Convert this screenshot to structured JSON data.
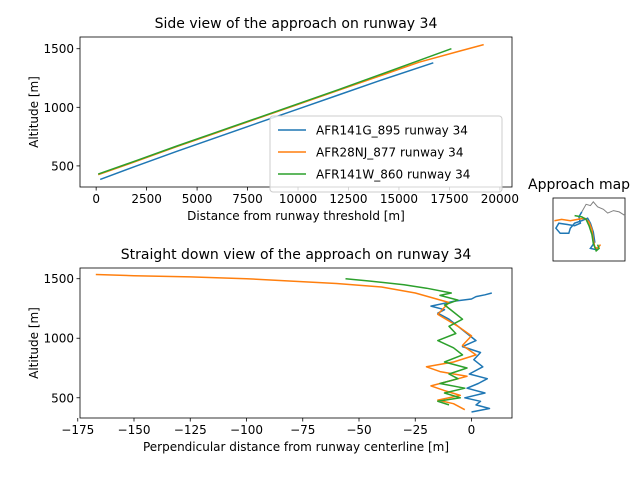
{
  "chart_data": [
    {
      "type": "line",
      "title": "Side view of the approach on runway 34",
      "xlabel": "Distance from runway threshold [m]",
      "ylabel": "Altitude [m]",
      "xlim": [
        -800,
        20600
      ],
      "ylim": [
        320,
        1600
      ],
      "xticks": [
        0,
        2500,
        5000,
        7500,
        10000,
        12500,
        15000,
        17500,
        20000
      ],
      "yticks": [
        500,
        1000,
        1500
      ],
      "grid": false,
      "legend": "bottom-right",
      "series": [
        {
          "name": "AFR141G_895 runway 34",
          "color": "#1f77b4",
          "x": [
            200,
            2000,
            4000,
            6000,
            8000,
            10000,
            12000,
            14000,
            16700
          ],
          "y": [
            385,
            500,
            625,
            745,
            865,
            985,
            1105,
            1225,
            1380
          ]
        },
        {
          "name": "AFR28NJ_877 runway 34",
          "color": "#ff7f0e",
          "x": [
            100,
            2000,
            4000,
            6000,
            8000,
            10000,
            12000,
            14000,
            16000,
            18000,
            19200
          ],
          "y": [
            425,
            540,
            665,
            785,
            905,
            1025,
            1145,
            1265,
            1385,
            1480,
            1535
          ]
        },
        {
          "name": "AFR141W_860 runway 34",
          "color": "#2ca02c",
          "x": [
            100,
            2000,
            4000,
            6000,
            8000,
            10000,
            12000,
            14000,
            16000,
            17600
          ],
          "y": [
            430,
            545,
            670,
            790,
            910,
            1030,
            1150,
            1275,
            1400,
            1500
          ]
        }
      ]
    },
    {
      "type": "line",
      "title": "Straight down view of the approach on runway 34",
      "xlabel": "Perpendicular distance from runway centerline [m]",
      "ylabel": "Altitude [m]",
      "xlim": [
        -174,
        18
      ],
      "ylim": [
        330,
        1590
      ],
      "xticks": [
        -175,
        -150,
        -125,
        -100,
        -75,
        -50,
        -25,
        0
      ],
      "yticks": [
        500,
        1000,
        1500
      ],
      "grid": false,
      "series": [
        {
          "name": "AFR141G_895 runway 34",
          "color": "#1f77b4",
          "x": [
            0,
            8,
            2,
            4,
            -3,
            6,
            -2,
            3,
            7,
            -1,
            5,
            1,
            4,
            -4,
            2,
            -2,
            -6,
            -10,
            -15,
            -12,
            -18,
            -8,
            0,
            2,
            6,
            9
          ],
          "y": [
            380,
            410,
            440,
            470,
            500,
            540,
            580,
            620,
            660,
            700,
            760,
            820,
            880,
            930,
            980,
            1040,
            1100,
            1160,
            1210,
            1240,
            1270,
            1310,
            1330,
            1350,
            1365,
            1380
          ]
        },
        {
          "name": "AFR28NJ_877 runway 34",
          "color": "#ff7f0e",
          "x": [
            -3,
            -8,
            -15,
            -5,
            -12,
            -18,
            -10,
            -2,
            -14,
            -20,
            -8,
            2,
            -4,
            0,
            -6,
            -15,
            -10,
            -25,
            -40,
            -60,
            -80,
            -100,
            -125,
            -150,
            -167
          ],
          "y": [
            400,
            450,
            480,
            520,
            560,
            600,
            640,
            680,
            720,
            760,
            800,
            860,
            940,
            1020,
            1100,
            1200,
            1300,
            1380,
            1430,
            1460,
            1480,
            1500,
            1515,
            1525,
            1535
          ]
        },
        {
          "name": "AFR141W_860 runway 34",
          "color": "#2ca02c",
          "x": [
            -10,
            -15,
            -5,
            -12,
            -3,
            -14,
            -6,
            -10,
            -2,
            -12,
            -4,
            -8,
            -15,
            -7,
            -10,
            -4,
            -8,
            -12,
            -6,
            -14,
            -9,
            -20,
            -30,
            -45,
            -56
          ],
          "y": [
            440,
            470,
            500,
            540,
            580,
            620,
            660,
            700,
            750,
            800,
            860,
            920,
            980,
            1040,
            1100,
            1160,
            1220,
            1280,
            1320,
            1360,
            1380,
            1420,
            1450,
            1480,
            1500
          ]
        }
      ]
    },
    {
      "type": "line",
      "title": "Approach map",
      "grid": false
    }
  ]
}
